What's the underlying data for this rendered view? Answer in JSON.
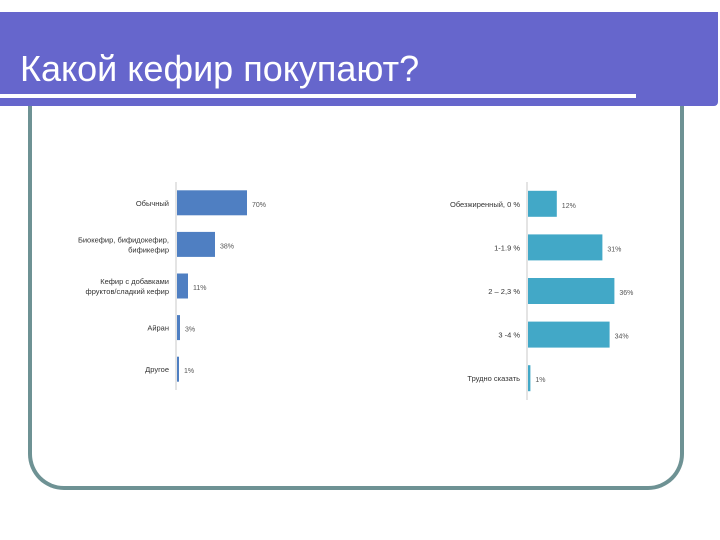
{
  "slide": {
    "title": "Какой кефир покупают?"
  },
  "colors": {
    "header": "#6666cc",
    "frame": "#6e9294",
    "left_bar": "#4f7fc2",
    "right_bar": "#42a8c7"
  },
  "chart_data": [
    {
      "type": "bar",
      "orientation": "horizontal",
      "title": "",
      "categories": [
        [
          "Обычный"
        ],
        [
          "Биокефир, бифидокефир,",
          "бификефир"
        ],
        [
          "Кефир с добавками",
          "фруктов/сладкий кефир"
        ],
        [
          "Айран"
        ],
        [
          "Другое"
        ]
      ],
      "values": [
        70,
        38,
        11,
        3,
        1
      ],
      "data_labels": [
        "70%",
        "38%",
        "11%",
        "3%",
        "1%"
      ],
      "xlim": [
        0,
        100
      ],
      "grid": false,
      "legend": "none"
    },
    {
      "type": "bar",
      "orientation": "horizontal",
      "title": "",
      "categories": [
        [
          "Обезжиренный, 0 %"
        ],
        [
          "1-1.9 %"
        ],
        [
          "2 – 2,3 %"
        ],
        [
          "3 -4 %"
        ],
        [
          "Трудно сказать"
        ]
      ],
      "values": [
        12,
        31,
        36,
        34,
        1
      ],
      "data_labels": [
        "12%",
        "31%",
        "36%",
        "34%",
        "1%"
      ],
      "xlim": [
        0,
        40
      ],
      "grid": false,
      "legend": "none"
    }
  ]
}
